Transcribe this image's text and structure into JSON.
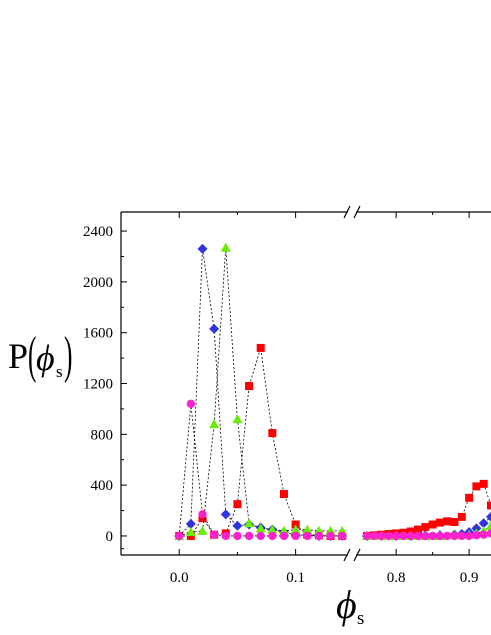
{
  "chart_data": {
    "type": "scatter",
    "title": "",
    "ylabel": {
      "main": "P",
      "symbol": "ϕ",
      "subscript": "s"
    },
    "xlabel": {
      "symbol": "ϕ",
      "subscript": "s"
    },
    "ylim": [
      -150,
      2550
    ],
    "axis_break": {
      "type": "x",
      "left_range": [
        -0.05,
        0.145
      ],
      "right_range": [
        0.745,
        0.93
      ]
    },
    "yticks": [
      0,
      400,
      800,
      1200,
      1600,
      2000,
      2400
    ],
    "ytick_labels": [
      "0",
      "400",
      "800",
      "1200",
      "1600",
      "2000",
      "2400"
    ],
    "xticks": [
      0.0,
      0.1,
      0.8,
      0.9
    ],
    "xtick_labels": [
      "0.0",
      "0.1",
      "0.8",
      "0.9"
    ],
    "grid": false,
    "series": [
      {
        "marker": "square",
        "color": "#ff0000",
        "x": [
          0.0,
          0.01,
          0.02,
          0.03,
          0.04,
          0.05,
          0.06,
          0.07,
          0.08,
          0.09,
          0.1,
          0.11,
          0.12,
          0.13,
          0.14,
          0.76,
          0.77,
          0.78,
          0.79,
          0.8,
          0.81,
          0.82,
          0.83,
          0.84,
          0.85,
          0.86,
          0.87,
          0.88,
          0.89,
          0.9,
          0.91,
          0.92,
          0.93
        ],
        "y": [
          0,
          0,
          140,
          10,
          20,
          250,
          1180,
          1480,
          810,
          330,
          90,
          10,
          5,
          0,
          0,
          0,
          5,
          10,
          15,
          20,
          25,
          35,
          50,
          70,
          90,
          105,
          115,
          110,
          150,
          300,
          390,
          410,
          240
        ]
      },
      {
        "marker": "diamond",
        "color": "#3333dd",
        "x": [
          0.0,
          0.01,
          0.02,
          0.03,
          0.04,
          0.05,
          0.06,
          0.07,
          0.08,
          0.09,
          0.1,
          0.11,
          0.12,
          0.13,
          0.14,
          0.76,
          0.78,
          0.8,
          0.82,
          0.84,
          0.86,
          0.88,
          0.89,
          0.9,
          0.91,
          0.92,
          0.93
        ],
        "y": [
          0,
          95,
          2260,
          1630,
          170,
          80,
          90,
          65,
          50,
          30,
          10,
          5,
          0,
          0,
          0,
          0,
          0,
          0,
          0,
          5,
          5,
          10,
          15,
          30,
          60,
          100,
          150
        ]
      },
      {
        "marker": "triangle",
        "color": "#66ee00",
        "x": [
          0.0,
          0.01,
          0.02,
          0.03,
          0.04,
          0.05,
          0.06,
          0.07,
          0.08,
          0.09,
          0.1,
          0.11,
          0.12,
          0.13,
          0.14,
          0.76,
          0.78,
          0.8,
          0.82,
          0.84,
          0.86,
          0.88,
          0.9,
          0.91,
          0.92,
          0.93
        ],
        "y": [
          0,
          30,
          40,
          880,
          2270,
          920,
          100,
          60,
          50,
          40,
          50,
          50,
          40,
          40,
          40,
          0,
          0,
          0,
          0,
          0,
          0,
          5,
          10,
          20,
          40,
          80
        ]
      },
      {
        "marker": "circle",
        "color": "#ff22cc",
        "x": [
          0.0,
          0.01,
          0.02,
          0.03,
          0.04,
          0.05,
          0.06,
          0.07,
          0.08,
          0.09,
          0.1,
          0.11,
          0.12,
          0.13,
          0.14,
          0.76,
          0.77,
          0.78,
          0.79,
          0.8,
          0.81,
          0.82,
          0.83,
          0.84,
          0.85,
          0.86,
          0.87,
          0.88,
          0.89,
          0.9,
          0.91,
          0.92,
          0.93
        ],
        "y": [
          0,
          1040,
          170,
          10,
          0,
          0,
          0,
          0,
          0,
          0,
          0,
          0,
          0,
          0,
          0,
          0,
          0,
          0,
          0,
          0,
          0,
          0,
          0,
          0,
          0,
          0,
          0,
          0,
          0,
          0,
          5,
          10,
          20
        ]
      }
    ]
  }
}
